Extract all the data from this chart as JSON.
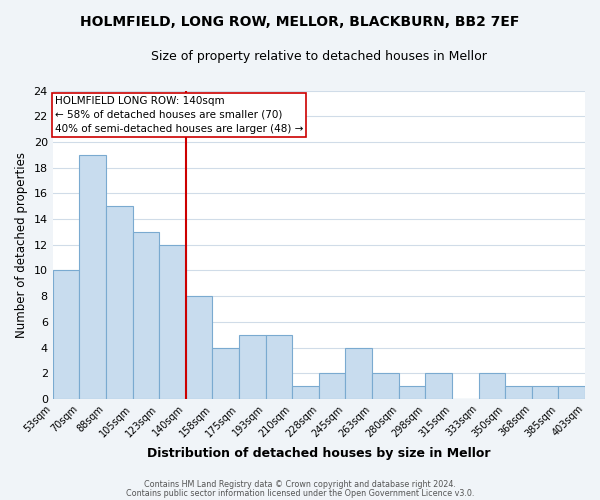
{
  "title": "HOLMFIELD, LONG ROW, MELLOR, BLACKBURN, BB2 7EF",
  "subtitle": "Size of property relative to detached houses in Mellor",
  "xlabel": "Distribution of detached houses by size in Mellor",
  "ylabel": "Number of detached properties",
  "bar_color": "#c8dcee",
  "bar_edge_color": "#7aaad0",
  "bin_labels": [
    "53sqm",
    "70sqm",
    "88sqm",
    "105sqm",
    "123sqm",
    "140sqm",
    "158sqm",
    "175sqm",
    "193sqm",
    "210sqm",
    "228sqm",
    "245sqm",
    "263sqm",
    "280sqm",
    "298sqm",
    "315sqm",
    "333sqm",
    "350sqm",
    "368sqm",
    "385sqm",
    "403sqm"
  ],
  "values": [
    10,
    19,
    15,
    13,
    12,
    8,
    4,
    5,
    5,
    1,
    2,
    4,
    2,
    1,
    2,
    0,
    2,
    1,
    1,
    1
  ],
  "vline_x_index": 5,
  "vline_color": "#cc0000",
  "annotation_title": "HOLMFIELD LONG ROW: 140sqm",
  "annotation_line1": "← 58% of detached houses are smaller (70)",
  "annotation_line2": "40% of semi-detached houses are larger (48) →",
  "annotation_box_color": "#ffffff",
  "annotation_box_edge": "#cc0000",
  "ylim": [
    0,
    24
  ],
  "yticks": [
    0,
    2,
    4,
    6,
    8,
    10,
    12,
    14,
    16,
    18,
    20,
    22,
    24
  ],
  "footer1": "Contains HM Land Registry data © Crown copyright and database right 2024.",
  "footer2": "Contains public sector information licensed under the Open Government Licence v3.0.",
  "plot_bg_color": "#ffffff",
  "fig_bg_color": "#f0f4f8",
  "grid_color": "#d0dce8"
}
